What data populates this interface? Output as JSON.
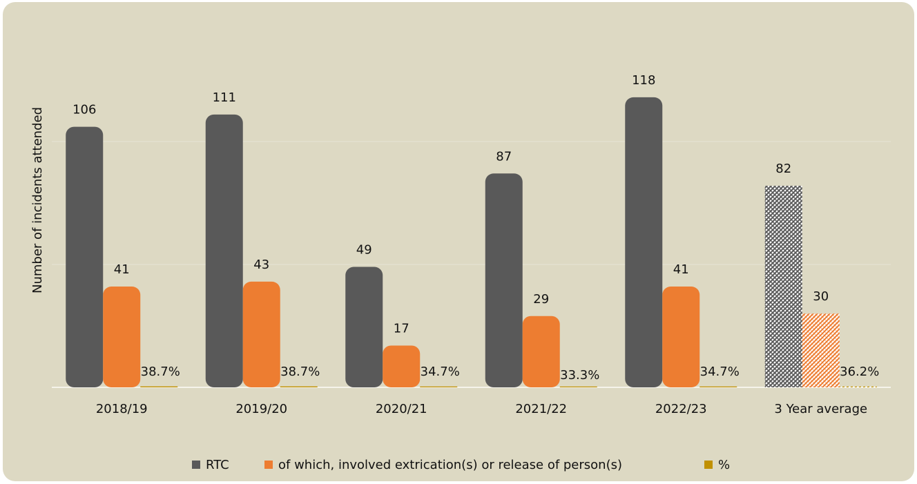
{
  "chart_data": {
    "type": "bar",
    "y_axis_label": "Number of incidents attended",
    "categories": [
      "2018/19",
      "2019/20",
      "2020/21",
      "2021/22",
      "2022/23",
      "3 Year average"
    ],
    "hatched": [
      false,
      false,
      false,
      false,
      false,
      true
    ],
    "series": [
      {
        "name": "RTC",
        "color": "#595959",
        "values": [
          106,
          111,
          49,
          87,
          118,
          82
        ]
      },
      {
        "name": "of which, involved extrication(s) or release of person(s)",
        "color": "#ed7d31",
        "values": [
          41,
          43,
          17,
          29,
          41,
          30
        ]
      },
      {
        "name": "%",
        "color": "#c09000",
        "values": [
          0.387,
          0.387,
          0.347,
          0.333,
          0.347,
          0.362
        ],
        "value_labels": [
          "38.7%",
          "38.7%",
          "34.7%",
          "33.3%",
          "34.7%",
          "36.2%"
        ]
      }
    ],
    "ylim": [
      0,
      125
    ],
    "yticks": [
      0,
      50,
      100
    ],
    "grid": true,
    "legend": "bottom"
  }
}
